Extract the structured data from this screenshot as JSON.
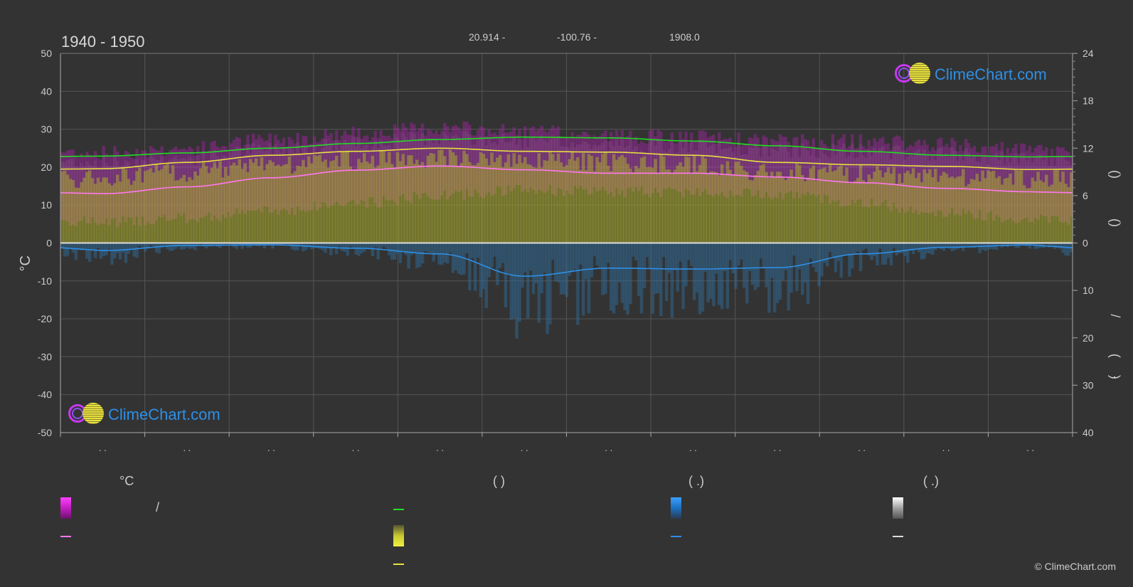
{
  "header": {
    "title": "1940 - 1950",
    "latitude": "20.914 -",
    "longitude": "-100.76 -",
    "elevation": "1908.0"
  },
  "logo_top": {
    "text": "ClimeChart.com"
  },
  "logo_bottom": {
    "text": "ClimeChart.com"
  },
  "copyright": "© ClimeChart.com",
  "legend": {
    "head_temp": "°C",
    "head_sun": "(          )",
    "head_rain": "(   .)",
    "head_snow": "(   .)",
    "temp_range_sep": "/"
  },
  "colors": {
    "background": "#333333",
    "temp_range": "#e040e0",
    "temp_mean": "#ff77ee",
    "daylight": "#22dd22",
    "sunshine": "#e8e830",
    "sunshine_line": "#e8e040",
    "rain": "#2e8fe6",
    "snow": "#dddddd"
  },
  "chart_data": {
    "type": "area",
    "x": [
      0.5,
      1.5,
      2.5,
      3.5,
      4.5,
      5.5,
      6.5,
      7.5,
      8.5,
      9.5,
      10.5,
      11.5
    ],
    "y_left_label": "°C",
    "y_left_range": [
      -50,
      50
    ],
    "y_left_ticks": [
      "50",
      "40",
      "30",
      "20",
      "10",
      "0",
      "-10",
      "-20",
      "-30",
      "-40",
      "-50"
    ],
    "y_right_top_ticks": [
      "24",
      "18",
      "12",
      "6",
      "0"
    ],
    "y_right_top_range": [
      0,
      24
    ],
    "y_right_bottom_ticks": [
      "0",
      "10",
      "20",
      "30",
      "40"
    ],
    "y_right_bottom_range": [
      0,
      40
    ],
    "x_tick_labels": [
      ". .",
      ". .",
      ". .",
      ". .",
      ". .",
      ". .",
      ". .",
      ". .",
      ". .",
      ". .",
      ". .",
      ". ."
    ],
    "right_axis_labels": [
      "(",
      ")",
      "(",
      ")",
      "/",
      "(",
      "·",
      ")"
    ],
    "grid": true,
    "series": [
      {
        "key": "daylight",
        "values": [
          11.0,
          11.4,
          12.0,
          12.6,
          13.1,
          13.4,
          13.3,
          12.9,
          12.3,
          11.6,
          11.1,
          10.9
        ]
      },
      {
        "key": "sunshine_line",
        "values": [
          9.4,
          10.2,
          11.1,
          11.6,
          12.0,
          11.6,
          11.5,
          11.1,
          10.2,
          9.9,
          9.7,
          9.3
        ]
      },
      {
        "key": "temp_max",
        "values": [
          20.5,
          21.5,
          24.0,
          25.5,
          27.0,
          26.0,
          25.0,
          24.5,
          23.5,
          23.5,
          22.5,
          21.0
        ]
      },
      {
        "key": "temp_min",
        "values": [
          5.5,
          6.5,
          8.5,
          10.5,
          12.5,
          14.0,
          13.5,
          13.5,
          13.0,
          10.5,
          8.0,
          6.5
        ]
      },
      {
        "key": "temp_mean",
        "values": [
          13.0,
          14.8,
          17.2,
          19.2,
          20.3,
          19.3,
          18.4,
          18.4,
          17.4,
          15.9,
          14.4,
          13.5
        ]
      },
      {
        "key": "rain_mm",
        "values": [
          1.6,
          0.5,
          0.4,
          1.1,
          2.3,
          7.0,
          5.3,
          5.5,
          5.2,
          2.3,
          0.9,
          0.4
        ]
      }
    ]
  }
}
